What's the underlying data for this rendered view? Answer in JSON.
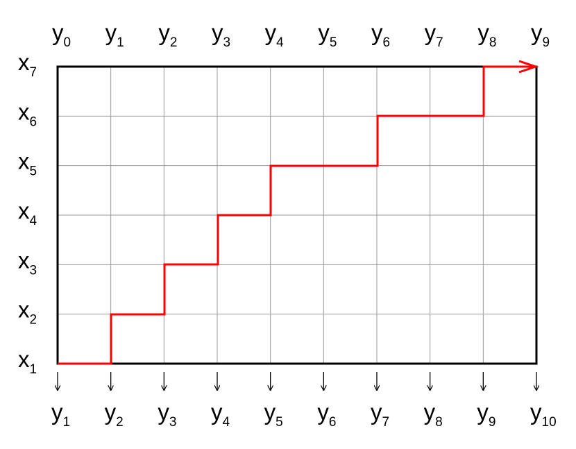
{
  "top_labels": [
    {
      "letter": "y",
      "index": "0"
    },
    {
      "letter": "y",
      "index": "1"
    },
    {
      "letter": "y",
      "index": "2"
    },
    {
      "letter": "y",
      "index": "3"
    },
    {
      "letter": "y",
      "index": "4"
    },
    {
      "letter": "y",
      "index": "5"
    },
    {
      "letter": "y",
      "index": "6"
    },
    {
      "letter": "y",
      "index": "7"
    },
    {
      "letter": "y",
      "index": "8"
    },
    {
      "letter": "y",
      "index": "9"
    }
  ],
  "left_labels": [
    {
      "letter": "x",
      "index": "7"
    },
    {
      "letter": "x",
      "index": "6"
    },
    {
      "letter": "x",
      "index": "5"
    },
    {
      "letter": "x",
      "index": "4"
    },
    {
      "letter": "x",
      "index": "3"
    },
    {
      "letter": "x",
      "index": "2"
    },
    {
      "letter": "x",
      "index": "1"
    }
  ],
  "bottom_labels": [
    {
      "letter": "y",
      "index": "1"
    },
    {
      "letter": "y",
      "index": "2"
    },
    {
      "letter": "y",
      "index": "3"
    },
    {
      "letter": "y",
      "index": "4"
    },
    {
      "letter": "y",
      "index": "5"
    },
    {
      "letter": "y",
      "index": "6"
    },
    {
      "letter": "y",
      "index": "7"
    },
    {
      "letter": "y",
      "index": "8"
    },
    {
      "letter": "y",
      "index": "9"
    },
    {
      "letter": "y",
      "index": "10"
    }
  ]
}
